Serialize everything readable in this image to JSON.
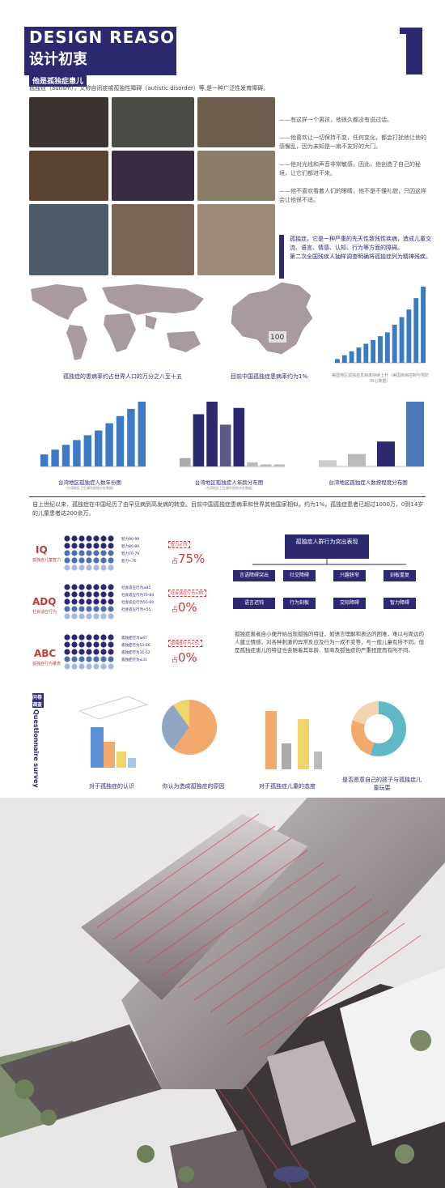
{
  "header": {
    "title": "DESIGN REASON",
    "subtitle": "设计初衷",
    "section_number": "1"
  },
  "section1": {
    "tag": "他是孤独症患儿",
    "intro": "孤独症（autism），又称自闭症或孤独性障碍（autistic disorder）等,是一种广泛性发育障碍。"
  },
  "quotes": [
    "——有这样一个男孩，他很久都没有说过话。",
    "——他喜欢让一切保持不变，任何变化，都会打扰他让他的感懈乱，因为未知是一扇不友好的大门。",
    "——他对光线和声音非常敏感，因此，他创造了自己的秘境，让它们都进不来。",
    "——他不喜欢看着人们的眼睛，他不是不懂礼貌，只因这样会让他很不适。"
  ],
  "definition": {
    "p1": "孤独症，它是一种严重的先天性致残性疾病，造成儿童交流、语言、情感、认知、行为等方面的障碍。",
    "p2": "第二次全国残疾人抽样调查明确将孤独症列为精神残疾。"
  },
  "maps": {
    "world_caption": "孤独症的患病率约占世界人口的万分之八至十五",
    "china_caption": "目前中国孤独症患病率约为1%",
    "china_label": "100",
    "trend_caption": "美国地区孤独症发病率持续上升（美国疾病控制与预防中心数据）"
  },
  "charts_row": [
    {
      "caption": "台湾地区孤独症人数年份图",
      "sub": "（台湾地区卫生福利部统计处数据）"
    },
    {
      "caption": "台湾地区孤独症人年龄分布图",
      "sub": "（台湾地区卫生福利部统计处数据）"
    },
    {
      "caption": "台湾地区孤独症人数按程度分布图",
      "sub": ""
    }
  ],
  "paragraph1": "自上世纪以来，孤独症在中国经历了由罕见病到高发病的转变。目前中国孤独症患病率和世界其他国家相似，约为1%，孤独症患者已超过1000万，0到14岁的儿童患者达200余万。",
  "scales": [
    {
      "code": "IQ",
      "name": "孤独症儿童智力",
      "legend": [
        "智力90-99",
        "智力80-89",
        "智力70-79",
        "智力<70"
      ],
      "box": "智力≤70",
      "pct": "75%",
      "prefix": "占"
    },
    {
      "code": "ADQ",
      "name": "社会适应行为",
      "legend": [
        "社会适应行为≥85",
        "社会适应行为70-84",
        "社会适应行为55-69",
        "社会适应行为<55"
      ],
      "box": "社会适应行为≥85",
      "pct": "0%",
      "prefix": "占"
    },
    {
      "code": "ABC",
      "name": "孤独症行为量表",
      "legend": [
        "孤独症行为≥67",
        "孤独症行为53-66",
        "孤独症行为31-52",
        "孤独症行为≤31"
      ],
      "box": "孤独症行为≤31",
      "pct": "0%",
      "prefix": "占"
    }
  ],
  "behaviors": {
    "top": "孤独症人群行为突出表现",
    "row1": [
      "言语障碍突出",
      "社交障碍",
      "兴趣狭窄",
      "刻板重复"
    ],
    "row2": [
      "语言迟钝",
      "行为刻板",
      "交际障碍",
      "智力障碍"
    ]
  },
  "paragraph2": "孤独症患者自小便开始出现孤独的特征，如语言理解和表达的困难，难以与周边的人建立情感，对各种刺激的异常反应及行为一成不变等，与一般儿童有所不同。但是孤独症患儿的特征也会随着其年龄、智商及孤独症的严重程度而有所不同。",
  "survey": {
    "title": "问卷调查",
    "title_en": "Questionnaire survey",
    "captions": [
      "对于孤独症的认识",
      "你认为造成孤独症的原因",
      "对于孤独症儿童的态度",
      "是否愿意自己的孩子与孤独症儿童玩耍"
    ]
  },
  "colors": {
    "navy": "#2b2a70",
    "accent_red": "#c23b3b",
    "map_gray": "#a99a9f",
    "chart_blue": "#3b7ac4"
  },
  "chart_data": [
    {
      "type": "bar",
      "title": "美国地区孤独症发病率持续上升",
      "values": [
        1,
        2,
        3,
        4,
        5,
        6,
        7,
        8,
        10,
        12,
        14,
        17,
        20
      ]
    },
    {
      "type": "bar",
      "title": "台湾地区孤独症人数年份图",
      "values": [
        5,
        7,
        9,
        11,
        13,
        15,
        18,
        21,
        24,
        27
      ]
    },
    {
      "type": "bar",
      "title": "台湾地区孤独症人年龄分布图",
      "values": [
        4,
        25,
        31,
        20,
        28,
        2,
        1,
        1
      ]
    },
    {
      "type": "bar",
      "title": "台湾地区孤独症人数按程度分布图",
      "values": [
        5,
        10,
        20,
        52
      ]
    },
    {
      "type": "pie",
      "title": "你认为造成孤独症的原因",
      "values": [
        60,
        30,
        10
      ]
    },
    {
      "type": "pie",
      "title": "是否愿意自己的孩子与孤独症儿童玩耍",
      "values": [
        55,
        25,
        20
      ]
    }
  ]
}
